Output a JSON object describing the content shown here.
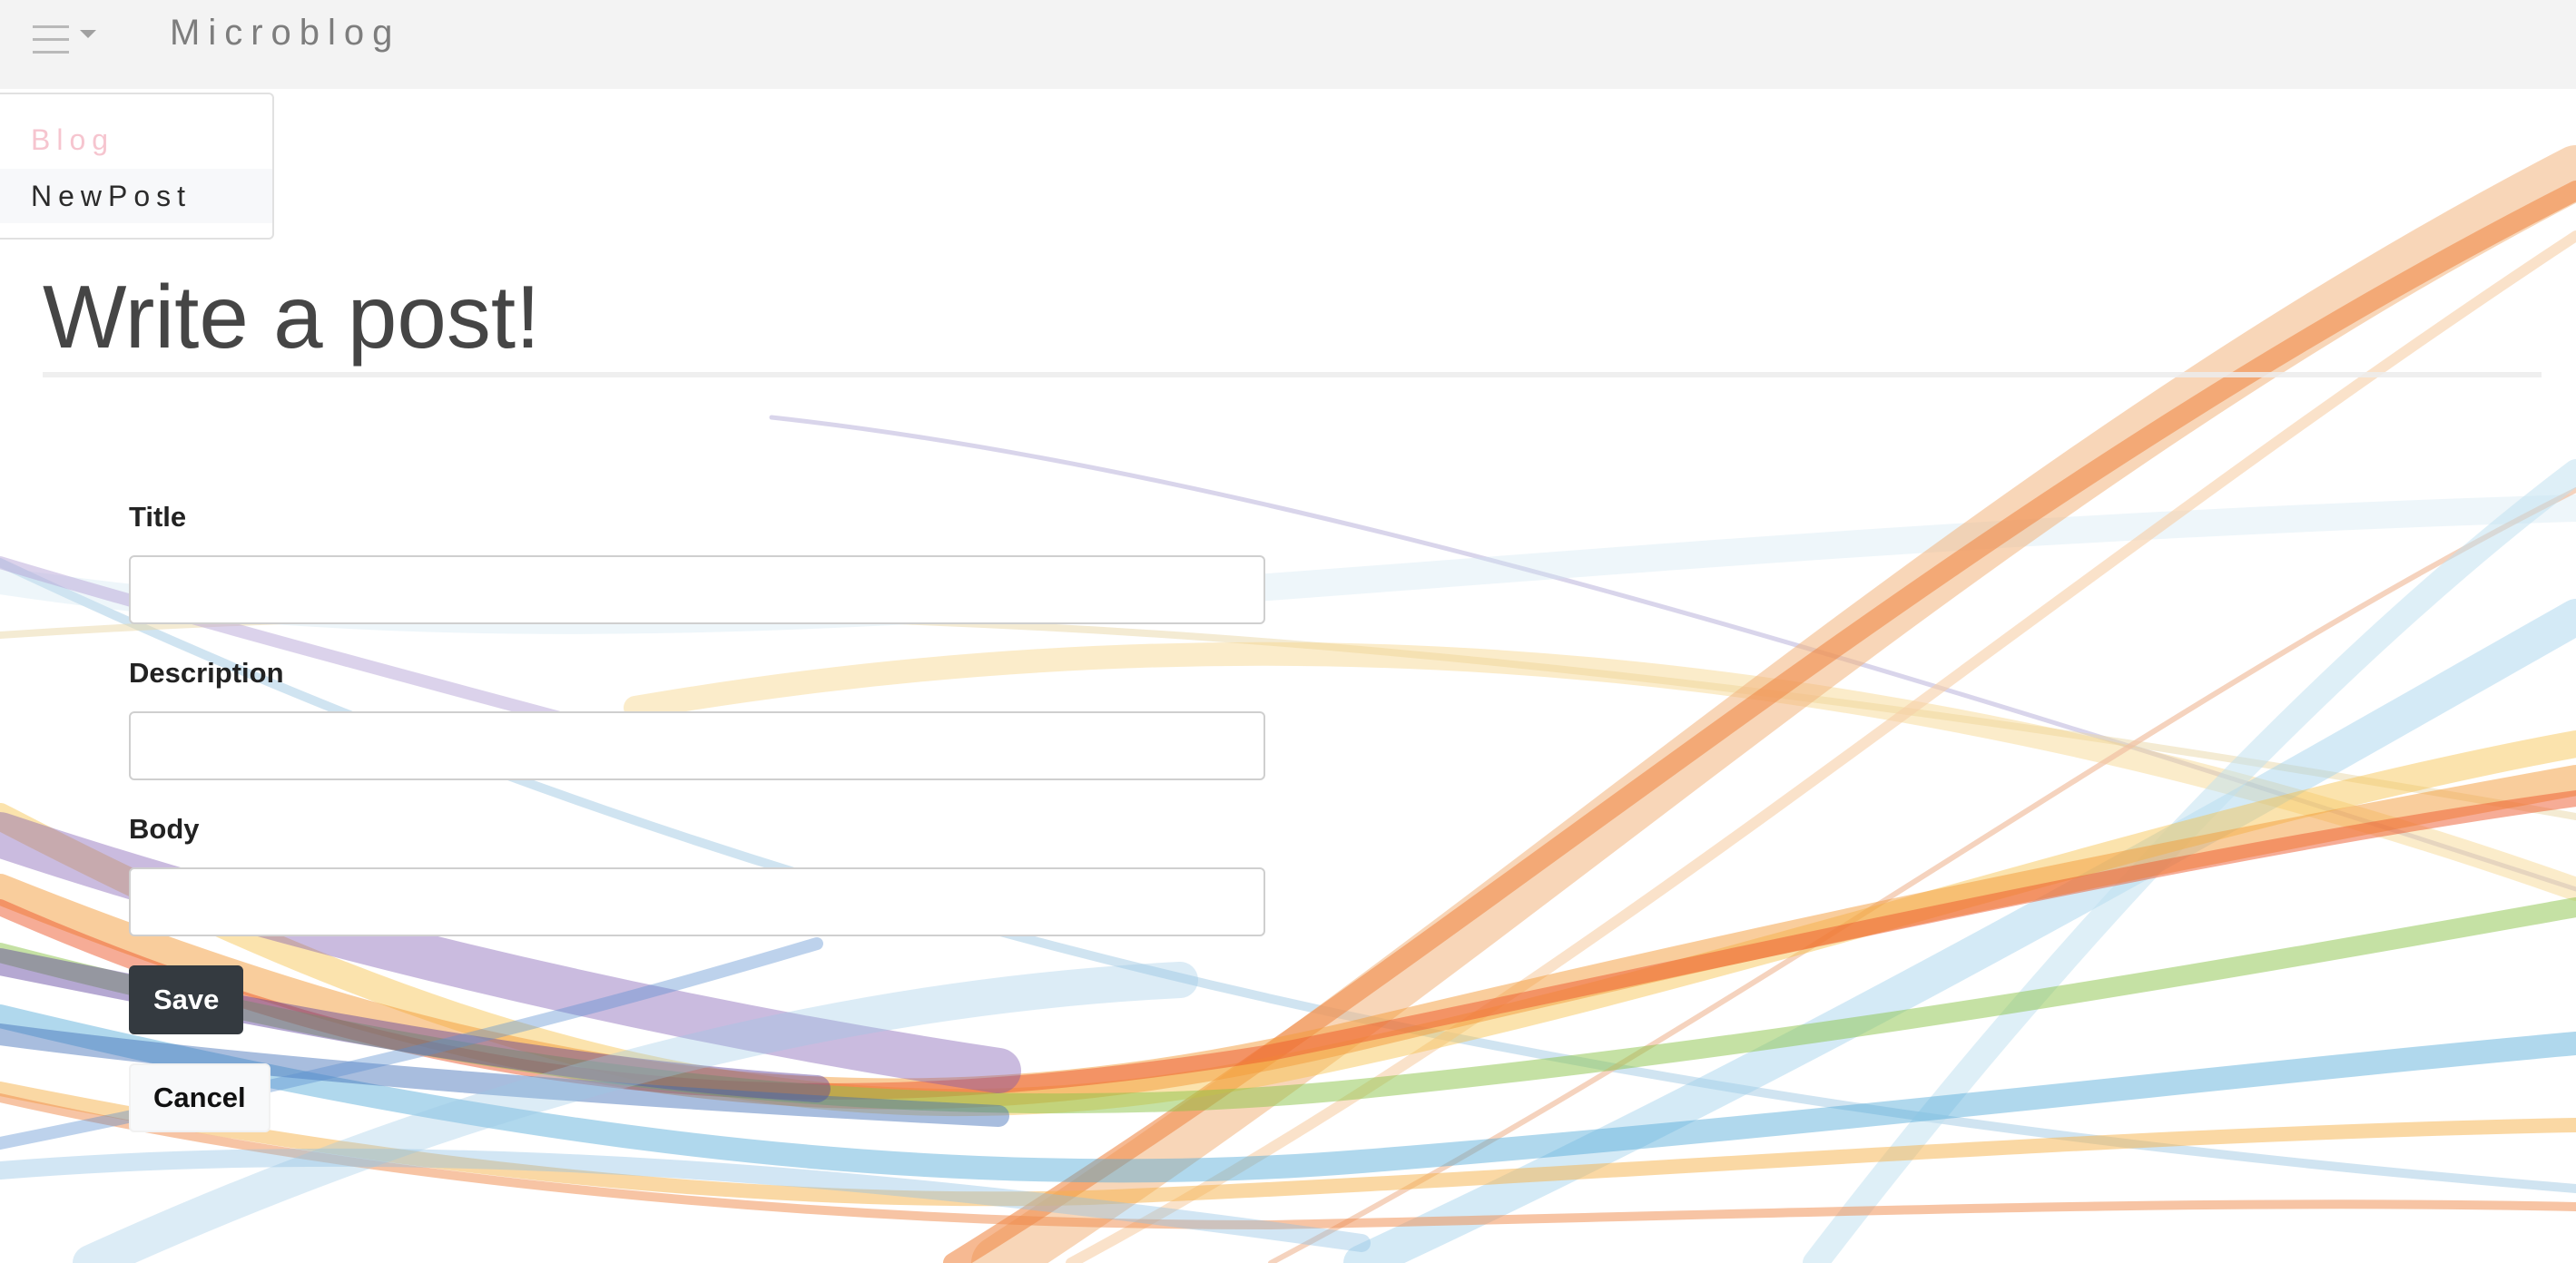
{
  "app": {
    "brand": "Microblog"
  },
  "nav_menu": {
    "items": [
      {
        "label": "Blog"
      },
      {
        "label": "NewPost"
      }
    ]
  },
  "page": {
    "title": "Write a post!"
  },
  "form": {
    "title_label": "Title",
    "title_value": "",
    "description_label": "Description",
    "description_value": "",
    "body_label": "Body",
    "body_value": "",
    "save_label": "Save",
    "cancel_label": "Cancel"
  },
  "colors": {
    "navbar_bg": "#f3f3f3",
    "brand_text": "#7d7d7d",
    "blog_link": "#f6c5cf",
    "save_button": "#343a40",
    "cancel_button": "#f8f9fa"
  }
}
